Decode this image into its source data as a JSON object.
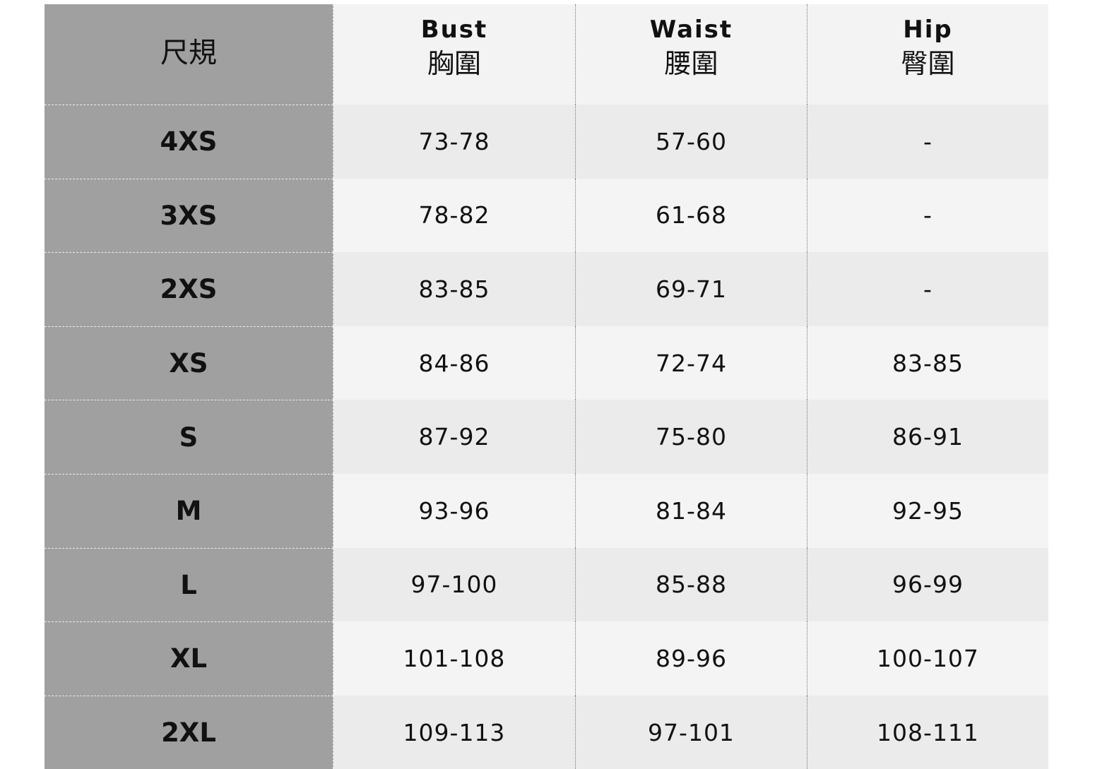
{
  "header": {
    "size_label": "尺規",
    "columns": [
      {
        "en": "Bust",
        "zh": "胸圍"
      },
      {
        "en": "Waist",
        "zh": "腰圍"
      },
      {
        "en": "Hip",
        "zh": "臀圍"
      }
    ]
  },
  "rows": [
    {
      "size": "4XS",
      "bust": "73-78",
      "waist": "57-60",
      "hip": "-"
    },
    {
      "size": "3XS",
      "bust": "78-82",
      "waist": "61-68",
      "hip": "-"
    },
    {
      "size": "2XS",
      "bust": "83-85",
      "waist": "69-71",
      "hip": "-"
    },
    {
      "size": "XS",
      "bust": "84-86",
      "waist": "72-74",
      "hip": "83-85"
    },
    {
      "size": "S",
      "bust": "87-92",
      "waist": "75-80",
      "hip": "86-91"
    },
    {
      "size": "M",
      "bust": "93-96",
      "waist": "81-84",
      "hip": "92-95"
    },
    {
      "size": "L",
      "bust": "97-100",
      "waist": "85-88",
      "hip": "96-99"
    },
    {
      "size": "XL",
      "bust": "101-108",
      "waist": "89-96",
      "hip": "100-107"
    },
    {
      "size": "2XL",
      "bust": "109-113",
      "waist": "97-101",
      "hip": "108-111"
    }
  ],
  "colors": {
    "size_column": "#a0a0a0",
    "row_light": "#f4f4f4",
    "row_dark": "#ebebeb"
  }
}
